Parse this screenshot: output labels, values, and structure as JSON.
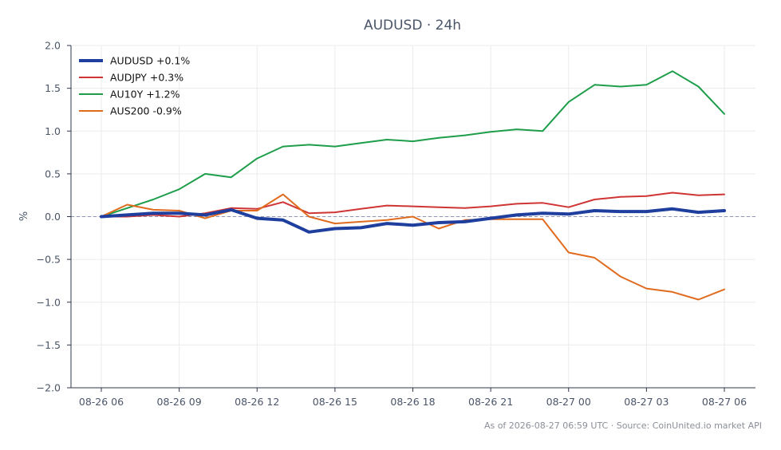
{
  "chart_data": {
    "type": "line",
    "title": "AUDUSD · 24h",
    "xlabel": "",
    "ylabel": "%",
    "ylim": [
      -2.0,
      2.0
    ],
    "yticks": [
      "2.0",
      "1.5",
      "1.0",
      "0.5",
      "0.0",
      "−0.5",
      "−1.0",
      "−1.5",
      "−2.0"
    ],
    "ytick_values": [
      2.0,
      1.5,
      1.0,
      0.5,
      0.0,
      -0.5,
      -1.0,
      -1.5,
      -2.0
    ],
    "x": [
      "08-26 06",
      "08-26 07",
      "08-26 08",
      "08-26 09",
      "08-26 10",
      "08-26 11",
      "08-26 12",
      "08-26 13",
      "08-26 14",
      "08-26 15",
      "08-26 16",
      "08-26 17",
      "08-26 18",
      "08-26 19",
      "08-26 20",
      "08-26 21",
      "08-26 22",
      "08-26 23",
      "08-27 00",
      "08-27 01",
      "08-27 02",
      "08-27 03",
      "08-27 04",
      "08-27 05",
      "08-27 06"
    ],
    "xticks": [
      "08-26 06",
      "08-26 09",
      "08-26 12",
      "08-26 15",
      "08-26 18",
      "08-26 21",
      "08-27 00",
      "08-27 03",
      "08-27 06"
    ],
    "grid": true,
    "legend_position": "top-left",
    "zero_line": true,
    "series": [
      {
        "name": "AUDUSD +0.1%",
        "color": "#1f3f9e",
        "values": [
          0.0,
          0.02,
          0.04,
          0.04,
          0.02,
          0.08,
          -0.02,
          -0.04,
          -0.18,
          -0.14,
          -0.13,
          -0.08,
          -0.1,
          -0.07,
          -0.06,
          -0.02,
          0.02,
          0.04,
          0.03,
          0.07,
          0.06,
          0.06,
          0.09,
          0.05,
          0.07
        ]
      },
      {
        "name": "AUDJPY +0.3%",
        "color": "#d03535",
        "values": [
          0.0,
          0.0,
          0.02,
          0.0,
          0.04,
          0.1,
          0.09,
          0.17,
          0.04,
          0.05,
          0.09,
          0.13,
          0.12,
          0.11,
          0.1,
          0.12,
          0.15,
          0.16,
          0.11,
          0.2,
          0.23,
          0.24,
          0.28,
          0.25,
          0.26
        ]
      },
      {
        "name": "AU10Y +1.2%",
        "color": "#1e9e4a",
        "values": [
          0.0,
          0.1,
          0.2,
          0.32,
          0.5,
          0.46,
          0.68,
          0.82,
          0.84,
          0.82,
          0.86,
          0.9,
          0.88,
          0.92,
          0.95,
          0.99,
          1.02,
          1.0,
          1.34,
          1.54,
          1.52,
          1.54,
          1.7,
          1.52,
          1.2
        ]
      },
      {
        "name": "AUS200 -0.9%",
        "color": "#e06b1f",
        "values": [
          0.0,
          0.14,
          0.08,
          0.07,
          -0.02,
          0.07,
          0.07,
          0.26,
          0.0,
          -0.08,
          -0.06,
          -0.04,
          0.0,
          -0.14,
          -0.04,
          -0.03,
          -0.03,
          -0.03,
          -0.42,
          -0.48,
          -0.7,
          -0.84,
          -0.88,
          -0.97,
          -0.85
        ]
      }
    ]
  },
  "footer": {
    "source": "As of 2026-08-27 06:59 UTC · Source: CoinUnited.io market API"
  }
}
